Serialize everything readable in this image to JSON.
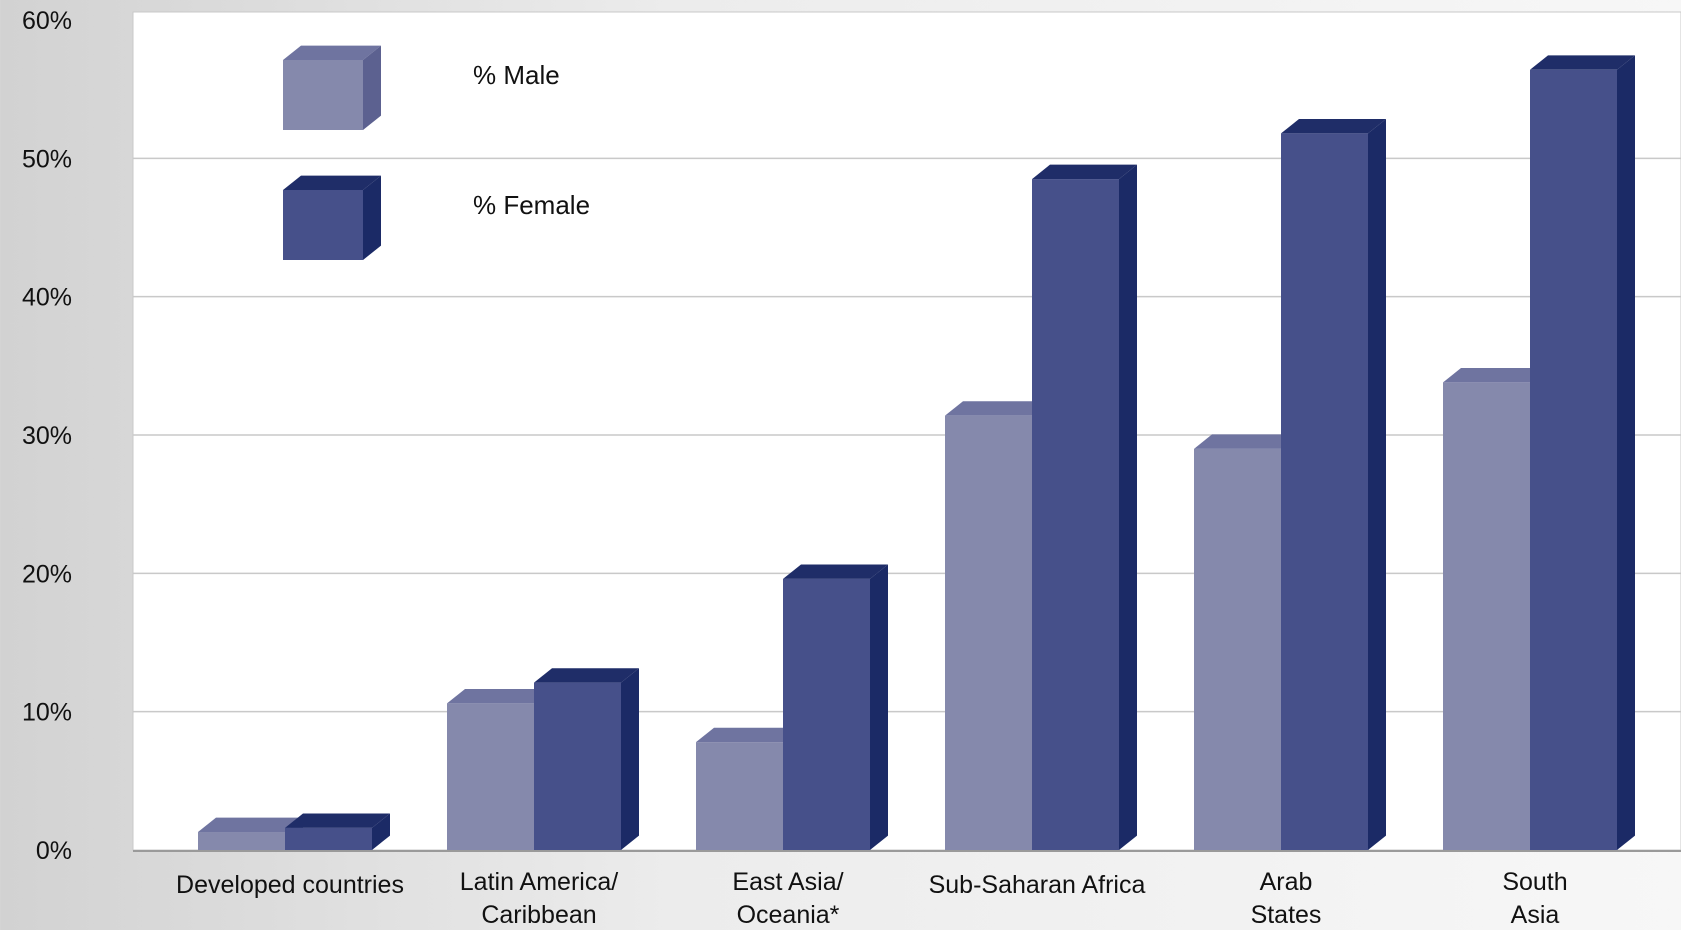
{
  "chart_data": {
    "type": "bar",
    "title": "",
    "xlabel": "",
    "ylabel": "",
    "ylim": [
      0,
      60
    ],
    "y_ticks": [
      {
        "value": 0,
        "label": "0%"
      },
      {
        "value": 10,
        "label": "10%"
      },
      {
        "value": 20,
        "label": "20%"
      },
      {
        "value": 30,
        "label": "30%"
      },
      {
        "value": 40,
        "label": "40%"
      },
      {
        "value": 50,
        "label": "50%"
      },
      {
        "value": 60,
        "label": "60%"
      }
    ],
    "grid": true,
    "legend_position": "top-left",
    "style": "3d-clustered-column",
    "categories": [
      [
        "Developed countries"
      ],
      [
        "Latin America/",
        "Caribbean"
      ],
      [
        "East Asia/",
        "Oceania*"
      ],
      [
        "Sub-Saharan Africa"
      ],
      [
        "Arab",
        "States"
      ],
      [
        "South",
        "Asia"
      ]
    ],
    "series": [
      {
        "name": "% Male",
        "color": "#8589ac",
        "top_color": "#6f74a0",
        "side_color": "#5c6190",
        "values": [
          1.3,
          10.6,
          7.8,
          31.4,
          29.0,
          33.8
        ]
      },
      {
        "name": "% Female",
        "color": "#46508a",
        "top_color": "#1f2d68",
        "side_color": "#1b2a66",
        "values": [
          1.6,
          12.1,
          19.6,
          48.5,
          51.8,
          56.4
        ]
      }
    ]
  }
}
